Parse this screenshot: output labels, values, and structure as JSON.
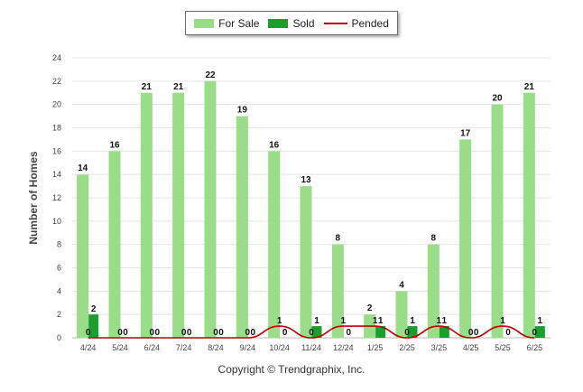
{
  "chart_data": {
    "type": "bar",
    "ylabel": "Number of Homes",
    "xlabel": "",
    "ylim": [
      0,
      24
    ],
    "yticks": [
      0,
      2,
      4,
      6,
      8,
      10,
      12,
      14,
      16,
      18,
      20,
      22,
      24
    ],
    "categories": [
      "4/24",
      "5/24",
      "6/24",
      "7/24",
      "8/24",
      "9/24",
      "10/24",
      "11/24",
      "12/24",
      "1/25",
      "2/25",
      "3/25",
      "4/25",
      "5/25",
      "6/25"
    ],
    "series": [
      {
        "name": "For Sale",
        "kind": "bar",
        "color": "#99dd88",
        "values": [
          14,
          16,
          21,
          21,
          22,
          19,
          16,
          13,
          8,
          2,
          4,
          8,
          17,
          20,
          21
        ]
      },
      {
        "name": "Sold",
        "kind": "bar",
        "color": "#1a9e2e",
        "values": [
          2,
          0,
          0,
          0,
          0,
          0,
          0,
          1,
          0,
          1,
          1,
          1,
          0,
          0,
          1
        ]
      },
      {
        "name": "Pended",
        "kind": "line",
        "color": "#c00000",
        "values": [
          0,
          0,
          0,
          0,
          0,
          0,
          1,
          0,
          1,
          1,
          0,
          1,
          0,
          1,
          0
        ]
      }
    ],
    "grid": true,
    "legend_position": "top-center"
  },
  "footer": {
    "copyright": "Copyright © Trendgraphix, Inc."
  }
}
